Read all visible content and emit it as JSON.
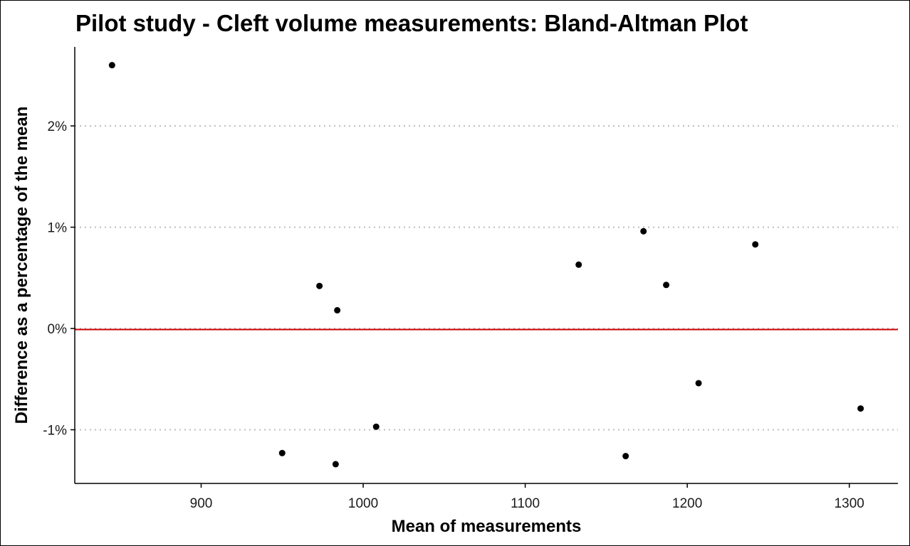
{
  "chart_data": {
    "type": "scatter",
    "title": "Pilot study - Cleft volume measurements: Bland-Altman Plot",
    "xlabel": "Mean of measurements",
    "ylabel": "Difference as a percentage of the mean",
    "xlim": [
      822,
      1330
    ],
    "ylim": [
      -1.53,
      2.78
    ],
    "x_ticks": [
      900,
      1000,
      1100,
      1200,
      1300
    ],
    "y_ticks": [
      -1,
      0,
      1,
      2
    ],
    "y_tick_labels": [
      "-1%",
      "0%",
      "1%",
      "2%"
    ],
    "grid": "horizontal dotted",
    "reference_line": {
      "y": -0.01,
      "color": "#cc0000"
    },
    "point_color": "#000000",
    "points": [
      {
        "x": 845,
        "y": 2.6
      },
      {
        "x": 950,
        "y": -1.23
      },
      {
        "x": 973,
        "y": 0.42
      },
      {
        "x": 983,
        "y": -1.34
      },
      {
        "x": 984,
        "y": 0.18
      },
      {
        "x": 1008,
        "y": -0.97
      },
      {
        "x": 1133,
        "y": 0.63
      },
      {
        "x": 1162,
        "y": -1.26
      },
      {
        "x": 1173,
        "y": 0.96
      },
      {
        "x": 1187,
        "y": 0.43
      },
      {
        "x": 1207,
        "y": -0.54
      },
      {
        "x": 1242,
        "y": 0.83
      },
      {
        "x": 1307,
        "y": -0.79
      }
    ]
  }
}
